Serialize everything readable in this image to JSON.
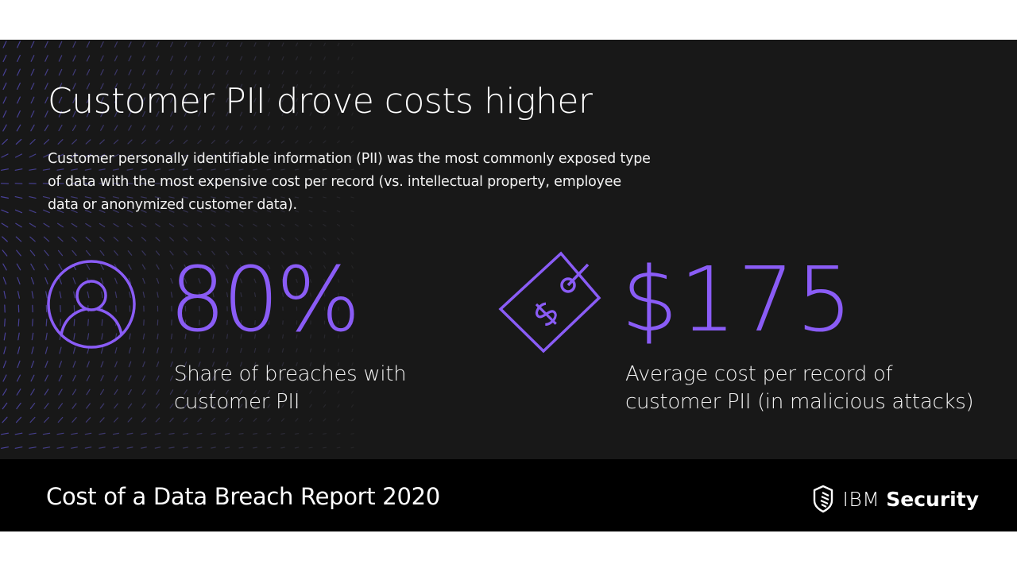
{
  "slide": {
    "title": "Customer PII drove costs higher",
    "description": "Customer personally identifiable information (PII) was the most commonly exposed type of data with the most expensive cost per record (vs. intellectual property, employee data or anonymized customer data).",
    "stats": [
      {
        "icon": "user-circle-icon",
        "value": "80%",
        "label": "Share of breaches with customer PII"
      },
      {
        "icon": "price-tag-icon",
        "value": "$175",
        "label": "Average cost per record of customer PII (in malicious attacks)"
      }
    ]
  },
  "footer": {
    "report_title": "Cost of a Data Breach Report 2020",
    "brand": {
      "icon": "ibm-security-shield-icon",
      "prefix": "IBM",
      "name": "Security"
    }
  },
  "colors": {
    "background": "#181818",
    "footer_background": "#000000",
    "accent": "#8a5cf6",
    "text": "#ffffff",
    "page_background": "#ffffff"
  }
}
